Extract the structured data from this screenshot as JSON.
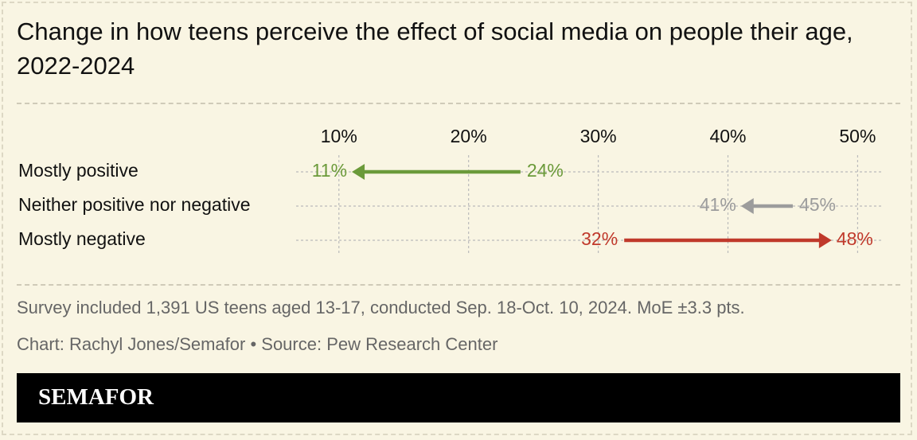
{
  "chart_data": {
    "type": "arrow",
    "title": "Change in how teens perceive the effect of social media on people their age, 2022-2024",
    "categories": [
      "Mostly positive",
      "Neither positive nor negative",
      "Mostly negative"
    ],
    "series": [
      {
        "values": [
          24,
          45,
          32
        ],
        "value_labels": [
          "24%",
          "45%",
          "32%"
        ]
      },
      {
        "values": [
          11,
          41,
          48
        ],
        "value_labels": [
          "11%",
          "41%",
          "48%"
        ]
      }
    ],
    "colors": [
      "#6b9a3a",
      "#9c9c9c",
      "#c0392b"
    ],
    "xlim": [
      6.7,
      52
    ],
    "xticks": [
      {
        "value": 10,
        "label": "10%"
      },
      {
        "value": 20,
        "label": "20%"
      },
      {
        "value": 30,
        "label": "30%"
      },
      {
        "value": 40,
        "label": "40%"
      },
      {
        "value": 50,
        "label": "50%"
      }
    ],
    "grid": true,
    "note": "Survey included 1,391 US teens aged 13-17, conducted Sep. 18-Oct. 10, 2024. MoE ±3.3 pts.",
    "credit": "Chart: Rachyl Jones/Semafor • Source: Pew Research Center",
    "brand": "SEMAFOR"
  }
}
